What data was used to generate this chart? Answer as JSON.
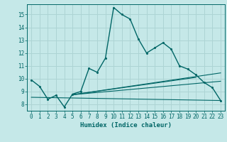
{
  "xlabel": "Humidex (Indice chaleur)",
  "bg_color": "#c5e8e8",
  "grid_color": "#add4d4",
  "line_color": "#006666",
  "xlim": [
    -0.5,
    23.5
  ],
  "ylim": [
    7.5,
    15.8
  ],
  "xticks": [
    0,
    1,
    2,
    3,
    4,
    5,
    6,
    7,
    8,
    9,
    10,
    11,
    12,
    13,
    14,
    15,
    16,
    17,
    18,
    19,
    20,
    21,
    22,
    23
  ],
  "yticks": [
    8,
    9,
    10,
    11,
    12,
    13,
    14,
    15
  ],
  "main_x": [
    0,
    1,
    2,
    3,
    4,
    5,
    6,
    7,
    8,
    9,
    10,
    11,
    12,
    13,
    14,
    15,
    16,
    17,
    18,
    19,
    20,
    21,
    22,
    23
  ],
  "main_y": [
    9.9,
    9.4,
    8.4,
    8.7,
    7.8,
    8.8,
    9.0,
    10.8,
    10.5,
    11.6,
    15.55,
    15.0,
    14.65,
    13.1,
    12.0,
    12.4,
    12.8,
    12.3,
    11.0,
    10.75,
    10.3,
    9.7,
    9.3,
    8.3
  ],
  "line1_x": [
    0,
    23
  ],
  "line1_y": [
    8.55,
    8.3
  ],
  "line2_x": [
    5,
    23
  ],
  "line2_y": [
    8.75,
    10.45
  ],
  "line3_x": [
    5,
    23
  ],
  "line3_y": [
    8.75,
    9.8
  ],
  "line4_x": [
    5,
    20
  ],
  "line4_y": [
    8.75,
    10.1
  ]
}
